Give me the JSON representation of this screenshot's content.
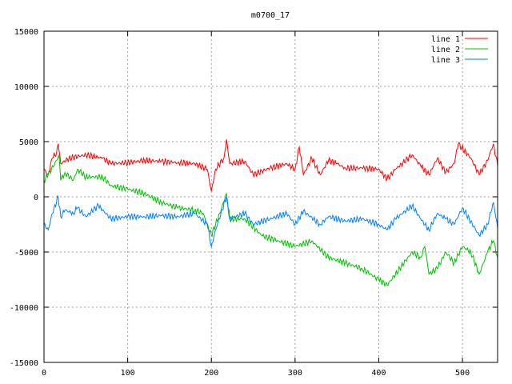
{
  "chart_data": {
    "type": "line",
    "title": "m0700_17",
    "xlabel": "",
    "ylabel": "",
    "xlim": [
      0,
      542
    ],
    "ylim": [
      -15000,
      15000
    ],
    "xticks": [
      0,
      100,
      200,
      300,
      400,
      500
    ],
    "yticks": [
      -15000,
      -10000,
      -5000,
      0,
      5000,
      10000,
      15000
    ],
    "grid": true,
    "legend_position": "top-right",
    "series": [
      {
        "name": "line 1",
        "color": "#ff0000",
        "x": [
          0,
          5,
          10,
          15,
          17,
          20,
          30,
          50,
          70,
          80,
          100,
          120,
          140,
          160,
          180,
          195,
          200,
          205,
          215,
          218,
          222,
          240,
          250,
          270,
          290,
          300,
          305,
          310,
          320,
          330,
          340,
          350,
          360,
          380,
          400,
          410,
          420,
          440,
          450,
          460,
          470,
          480,
          490,
          495,
          510,
          520,
          530,
          537,
          542
        ],
        "y": [
          2500,
          2000,
          3500,
          4000,
          4800,
          3000,
          3500,
          3800,
          3500,
          3000,
          3100,
          3300,
          3200,
          3100,
          3000,
          2500,
          500,
          2500,
          3500,
          5200,
          3000,
          3200,
          2000,
          2600,
          3000,
          2500,
          4500,
          2000,
          3500,
          2000,
          3300,
          3000,
          2600,
          2600,
          2500,
          1600,
          2500,
          3800,
          2800,
          2000,
          3500,
          2200,
          3000,
          4800,
          3500,
          2000,
          3300,
          4800,
          2800
        ]
      },
      {
        "name": "line 2",
        "color": "#00c000",
        "x": [
          0,
          5,
          15,
          18,
          20,
          25,
          35,
          40,
          50,
          70,
          80,
          100,
          120,
          140,
          160,
          180,
          190,
          200,
          205,
          210,
          218,
          222,
          240,
          260,
          280,
          300,
          320,
          340,
          360,
          380,
          400,
          410,
          420,
          440,
          450,
          455,
          460,
          470,
          480,
          490,
          500,
          510,
          520,
          530,
          537,
          542
        ],
        "y": [
          1500,
          2000,
          3300,
          3800,
          1500,
          2200,
          1500,
          2500,
          1800,
          1800,
          1000,
          700,
          300,
          -500,
          -1000,
          -1200,
          -1500,
          -3500,
          -2500,
          -1500,
          300,
          -2000,
          -2000,
          -3500,
          -4000,
          -4500,
          -4000,
          -5500,
          -6000,
          -6500,
          -7500,
          -8000,
          -7000,
          -5000,
          -5500,
          -4500,
          -7000,
          -6500,
          -5000,
          -6000,
          -4500,
          -5000,
          -7000,
          -5000,
          -4000,
          -5500
        ]
      },
      {
        "name": "line 3",
        "color": "#0080ff",
        "x": [
          0,
          5,
          10,
          17,
          20,
          25,
          35,
          40,
          50,
          65,
          80,
          100,
          120,
          140,
          160,
          180,
          195,
          200,
          205,
          218,
          222,
          240,
          250,
          270,
          290,
          300,
          310,
          330,
          340,
          360,
          380,
          400,
          410,
          420,
          440,
          450,
          460,
          470,
          480,
          490,
          500,
          520,
          530,
          537,
          542
        ],
        "y": [
          -2500,
          -3000,
          -1500,
          0,
          -1800,
          -1200,
          -1500,
          -1000,
          -1800,
          -800,
          -2000,
          -1800,
          -1800,
          -1700,
          -1800,
          -1500,
          -2500,
          -4500,
          -3000,
          0,
          -2000,
          -1500,
          -2500,
          -2000,
          -1500,
          -2500,
          -1300,
          -2500,
          -1800,
          -2200,
          -2000,
          -2500,
          -3000,
          -2000,
          -800,
          -2000,
          -3000,
          -1500,
          -2000,
          -2500,
          -1000,
          -3500,
          -2500,
          -500,
          -2800
        ]
      }
    ]
  }
}
